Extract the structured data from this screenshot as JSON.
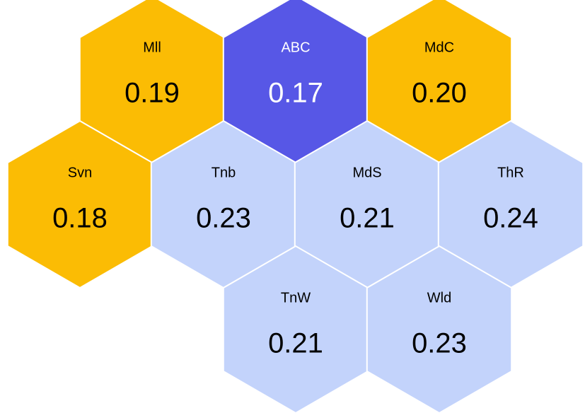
{
  "chart_data": {
    "type": "hex",
    "categories": [
      "Mll",
      "ABC",
      "MdC",
      "Svn",
      "Tnb",
      "MdS",
      "ThR",
      "TnW",
      "Wld"
    ],
    "values": [
      0.19,
      0.17,
      0.2,
      0.18,
      0.23,
      0.21,
      0.24,
      0.21,
      0.23
    ],
    "value_labels": [
      "0.19",
      "0.17",
      "0.20",
      "0.18",
      "0.23",
      "0.21",
      "0.24",
      "0.21",
      "0.23"
    ],
    "colors": [
      "#fbbc04",
      "#5757e6",
      "#fbbc04",
      "#fbbc04",
      "#c3d3fb",
      "#c3d3fb",
      "#c3d3fb",
      "#c3d3fb",
      "#c3d3fb"
    ]
  }
}
